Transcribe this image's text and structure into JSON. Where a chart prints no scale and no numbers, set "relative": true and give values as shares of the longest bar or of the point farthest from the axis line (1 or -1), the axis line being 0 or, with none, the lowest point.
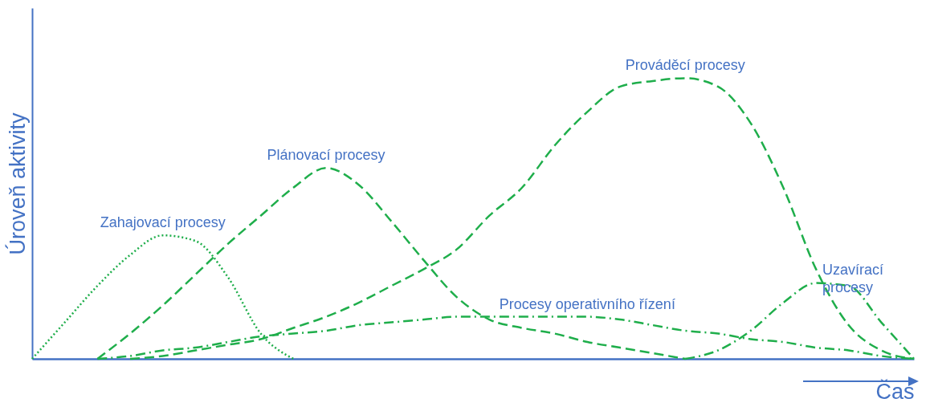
{
  "chart_data": {
    "type": "line",
    "relative": true,
    "xlabel": "Čas",
    "ylabel": "Úroveň aktivity",
    "legend": false,
    "grid": false,
    "marker": "none",
    "categories": [
      null,
      null,
      null,
      null,
      null,
      null,
      null,
      null,
      null,
      null,
      null,
      null,
      null,
      null,
      null,
      null,
      null,
      null,
      null,
      null,
      null,
      null,
      null,
      null,
      null,
      null,
      null,
      null
    ],
    "series": [
      {
        "name": "Zahajovací procesy",
        "color": "#1fae4b",
        "line_style": "dotted",
        "values": [
          0,
          0.13,
          0.26,
          0.37,
          0.44,
          0.42,
          0.29,
          0.09,
          0,
          null,
          null,
          null,
          null,
          null,
          null,
          null,
          null,
          null,
          null,
          null,
          null,
          null,
          null,
          null,
          null,
          null,
          null,
          null
        ]
      },
      {
        "name": "Plánovací procesy",
        "color": "#1fae4b",
        "line_style": "dashed",
        "values": [
          null,
          null,
          0,
          0.09,
          0.19,
          0.3,
          0.41,
          0.51,
          0.61,
          0.68,
          0.62,
          0.49,
          0.35,
          0.22,
          0.14,
          0.11,
          0.09,
          0.06,
          0.04,
          0.02,
          0,
          null,
          null,
          null,
          null,
          null,
          null,
          null
        ]
      },
      {
        "name": "Prováděcí procesy",
        "color": "#1fae4b",
        "line_style": "dashed",
        "values": [
          null,
          null,
          null,
          0,
          0.01,
          0.03,
          0.05,
          0.07,
          0.11,
          0.15,
          0.2,
          0.26,
          0.32,
          0.39,
          0.51,
          0.61,
          0.76,
          0.88,
          0.97,
          0.99,
          1,
          0.97,
          0.84,
          0.61,
          0.32,
          0.12,
          0.03,
          0
        ]
      },
      {
        "name": "Procesy operativního řízení",
        "color": "#1fae4b",
        "line_style": "dashdot",
        "values": [
          null,
          null,
          0,
          0.01,
          0.03,
          0.04,
          0.06,
          0.08,
          0.09,
          0.1,
          0.12,
          0.13,
          0.14,
          0.15,
          0.15,
          0.15,
          0.15,
          0.15,
          0.14,
          0.12,
          0.1,
          0.09,
          0.07,
          0.06,
          0.04,
          0.03,
          0.01,
          0
        ]
      },
      {
        "name": "Uzavírací procesy",
        "color": "#1fae4b",
        "line_style": "dashdot",
        "values": [
          null,
          null,
          null,
          null,
          null,
          null,
          null,
          null,
          null,
          null,
          null,
          null,
          null,
          null,
          null,
          null,
          null,
          null,
          null,
          null,
          0,
          0.03,
          0.1,
          0.2,
          0.27,
          0.26,
          0.13,
          0
        ]
      }
    ]
  }
}
